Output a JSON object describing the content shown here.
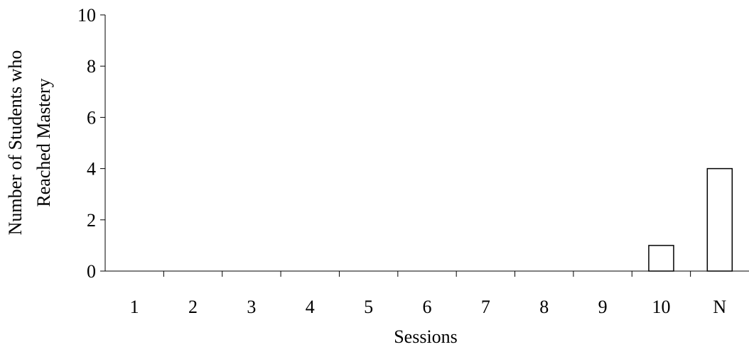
{
  "chart_data": {
    "type": "bar",
    "title": "",
    "xlabel": "Sessions",
    "ylabel_lines": [
      "Number of Students who",
      "Reached Mastery"
    ],
    "categories": [
      "1",
      "2",
      "3",
      "4",
      "5",
      "6",
      "7",
      "8",
      "9",
      "10",
      "N"
    ],
    "values": [
      0,
      0,
      0,
      0,
      0,
      0,
      0,
      0,
      0,
      1,
      4
    ],
    "ylim": [
      0,
      10
    ],
    "yticks": [
      "0",
      "2",
      "4",
      "6",
      "8",
      "10"
    ],
    "grid": false,
    "legend": "none",
    "bar_fill": "#ffffff",
    "bar_stroke": "#000000",
    "axis_color": "#000000"
  }
}
